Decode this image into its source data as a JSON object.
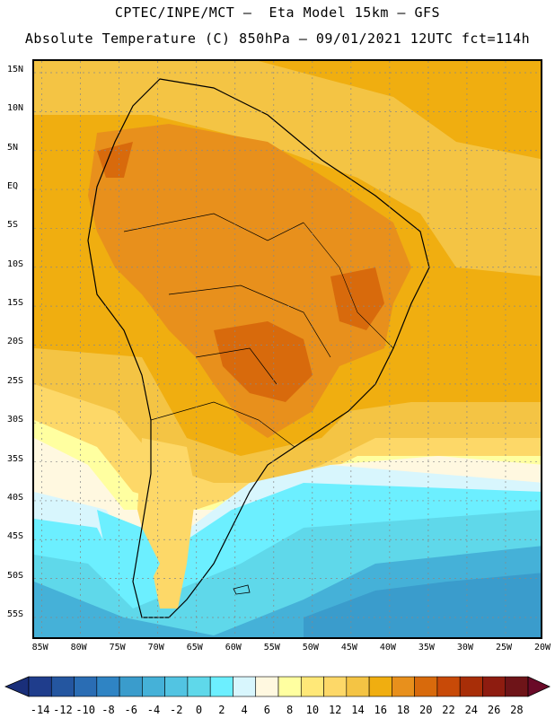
{
  "header": {
    "line1": "CPTEC/INPE/MCT –  Eta Model 15km – GFS",
    "line2": "Absolute Temperature (C) 850hPa – 09/01/2021 12UTC fct=114h"
  },
  "map": {
    "lat_labels": [
      "15N",
      "10N",
      "5N",
      "EQ",
      "5S",
      "10S",
      "15S",
      "20S",
      "25S",
      "30S",
      "35S",
      "40S",
      "45S",
      "50S",
      "55S"
    ],
    "lon_labels": [
      "85W",
      "80W",
      "75W",
      "70W",
      "65W",
      "60W",
      "55W",
      "50W",
      "45W",
      "40W",
      "35W",
      "30W",
      "25W",
      "20W"
    ],
    "lat_values": [
      15,
      10,
      5,
      0,
      -5,
      -10,
      -15,
      -20,
      -25,
      -30,
      -35,
      -40,
      -45,
      -50,
      -55
    ],
    "lon_values": [
      -85,
      -80,
      -75,
      -70,
      -65,
      -60,
      -55,
      -50,
      -45,
      -40,
      -35,
      -30,
      -25,
      -20
    ],
    "lat_range": [
      -58,
      16.5
    ],
    "lon_range": [
      -86,
      -20
    ]
  },
  "colorbar": {
    "tick_labels": [
      "-14",
      "-12",
      "-10",
      "-8",
      "-6",
      "-4",
      "-2",
      "0",
      "2",
      "4",
      "6",
      "8",
      "10",
      "12",
      "14",
      "16",
      "18",
      "20",
      "22",
      "24",
      "26",
      "28"
    ],
    "colors": [
      "#1f3d8c",
      "#2456a0",
      "#2a6db4",
      "#2f84c4",
      "#3a9ccc",
      "#45b1d8",
      "#52c4e2",
      "#5fd8ea",
      "#6cefff",
      "#d8f6fd",
      "#fff8e0",
      "#ffffa0",
      "#ffe878",
      "#fdd868",
      "#f4c444",
      "#f0ae10",
      "#e8901c",
      "#d86a0c",
      "#c84a08",
      "#a82e08",
      "#8e1c10",
      "#6e1418"
    ],
    "under_color": "#1a2f7a",
    "over_color": "#6a0a28"
  }
}
